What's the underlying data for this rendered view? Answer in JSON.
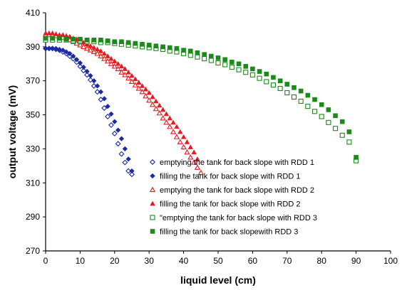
{
  "chart_data": {
    "type": "scatter",
    "xlabel": "liquid level (cm)",
    "ylabel": "output voltage (mV)",
    "xlim": [
      0,
      100
    ],
    "ylim": [
      270,
      410
    ],
    "xticks": [
      0,
      10,
      20,
      30,
      40,
      50,
      60,
      70,
      80,
      90,
      100
    ],
    "yticks": [
      270,
      290,
      310,
      330,
      350,
      370,
      390,
      410
    ],
    "grid": false,
    "legend_position": "inside-bottom-center",
    "series": [
      {
        "name": "emptying the tank for back slope with RDD 1",
        "marker": "diamond-open",
        "color": "#1c2aa6",
        "x": [
          0,
          1,
          2,
          3,
          4,
          5,
          6,
          7,
          8,
          9,
          10,
          11,
          12,
          13,
          14,
          15,
          16,
          17,
          18,
          19,
          20,
          21,
          22,
          23,
          24,
          25
        ],
        "y": [
          389,
          389,
          389,
          388.5,
          388,
          387,
          386,
          384.5,
          383,
          381,
          378.5,
          376,
          373.5,
          370.5,
          367,
          363.5,
          359,
          354,
          349,
          344,
          339,
          333,
          327,
          322,
          317,
          315
        ]
      },
      {
        "name": "filling the tank for back slope with RDD 1",
        "marker": "diamond-filled",
        "color": "#1c2aa6",
        "x": [
          0,
          1,
          2,
          3,
          4,
          5,
          6,
          7,
          8,
          9,
          10,
          11,
          12,
          13,
          14,
          15,
          16,
          17,
          18,
          19,
          20,
          21,
          22,
          23,
          24,
          25
        ],
        "y": [
          389,
          389,
          389,
          389,
          388.5,
          388,
          387,
          386,
          384.5,
          382.5,
          380.5,
          378,
          375.5,
          373,
          370,
          367,
          363.5,
          359.5,
          355,
          350.5,
          346,
          341,
          336,
          330,
          324,
          317
        ]
      },
      {
        "name": "emptying the tank for back slope with RDD 2",
        "marker": "triangle-open",
        "color": "#e8191f",
        "x": [
          0,
          1,
          2,
          3,
          4,
          5,
          6,
          7,
          8,
          9,
          10,
          11,
          12,
          13,
          14,
          15,
          16,
          17,
          18,
          19,
          20,
          21,
          22,
          23,
          24,
          25,
          26,
          27,
          28,
          29,
          30,
          31,
          32,
          33,
          34,
          35,
          36,
          37,
          38,
          39,
          40,
          41,
          42,
          43,
          44,
          45
        ],
        "y": [
          397,
          397,
          397,
          396.5,
          396,
          395.5,
          395,
          394,
          393,
          392,
          391,
          390,
          389,
          388,
          387,
          386,
          384.5,
          383,
          381.5,
          380,
          378.5,
          377,
          375,
          373.5,
          371.5,
          369.5,
          367.5,
          365.5,
          363.5,
          361,
          358.5,
          356,
          353.5,
          351,
          348,
          345.5,
          343,
          340,
          337,
          334,
          331,
          328,
          325,
          322,
          319,
          316
        ]
      },
      {
        "name": "filling the tank for back slope with RDD 2",
        "marker": "triangle-filled",
        "color": "#e8191f",
        "x": [
          0,
          1,
          2,
          3,
          4,
          5,
          6,
          7,
          8,
          9,
          10,
          11,
          12,
          13,
          14,
          15,
          16,
          17,
          18,
          19,
          20,
          21,
          22,
          23,
          24,
          25,
          26,
          27,
          28,
          29,
          30,
          31,
          32,
          33,
          34,
          35,
          36,
          37,
          38,
          39,
          40,
          41,
          42,
          43,
          44
        ],
        "y": [
          398,
          398,
          398,
          397.5,
          397,
          397,
          396.5,
          396,
          395,
          394.5,
          393.5,
          392.5,
          391.5,
          390.5,
          389.5,
          388.5,
          387.5,
          386,
          384.5,
          383,
          381.5,
          380,
          378.5,
          377,
          375,
          373,
          371,
          369,
          367,
          365,
          363,
          360.5,
          358,
          355.5,
          353,
          350.5,
          348,
          345.5,
          343,
          340,
          337,
          334,
          331,
          328,
          324
        ]
      },
      {
        "name": "\"emptying the tank for back slope with RDD 3",
        "marker": "square-open",
        "color": "#1a8a1a",
        "x": [
          0,
          2,
          4,
          6,
          8,
          10,
          12,
          14,
          16,
          18,
          20,
          22,
          24,
          26,
          28,
          30,
          32,
          34,
          36,
          38,
          40,
          42,
          44,
          46,
          48,
          50,
          52,
          54,
          56,
          58,
          60,
          62,
          64,
          66,
          68,
          70,
          72,
          74,
          76,
          78,
          80,
          82,
          84,
          86,
          88,
          90
        ],
        "y": [
          394,
          394,
          394,
          394,
          393.5,
          393.5,
          393,
          393,
          392.5,
          392.5,
          392,
          391.5,
          391,
          390.5,
          390,
          389.5,
          389,
          388.5,
          387.5,
          387,
          386,
          385,
          384,
          383,
          382,
          380.5,
          379.5,
          378,
          376.5,
          375,
          373.5,
          371.5,
          369.5,
          367.5,
          365.5,
          363,
          360.5,
          358,
          355,
          352,
          349,
          345.5,
          342,
          338,
          334,
          323
        ]
      },
      {
        "name": "filling the tank for back slopewith RDD 3",
        "marker": "square-filled",
        "color": "#1a8a1a",
        "x": [
          0,
          2,
          4,
          6,
          8,
          10,
          12,
          14,
          16,
          18,
          20,
          22,
          24,
          26,
          28,
          30,
          32,
          34,
          36,
          38,
          40,
          42,
          44,
          46,
          48,
          50,
          52,
          54,
          56,
          58,
          60,
          62,
          64,
          66,
          68,
          70,
          72,
          74,
          76,
          78,
          80,
          82,
          84,
          86,
          88,
          90
        ],
        "y": [
          395,
          395,
          395,
          394.5,
          394.5,
          394.5,
          394,
          394,
          394,
          393.5,
          393,
          393,
          392.5,
          392,
          391.5,
          391,
          390.5,
          390,
          389.5,
          389,
          388,
          387.5,
          386.5,
          385.5,
          384.5,
          383.5,
          382.5,
          381,
          380,
          378.5,
          377,
          375.5,
          374,
          372,
          370,
          368,
          366,
          364,
          361.5,
          359,
          356,
          353,
          349.5,
          346,
          340,
          325
        ]
      }
    ]
  }
}
